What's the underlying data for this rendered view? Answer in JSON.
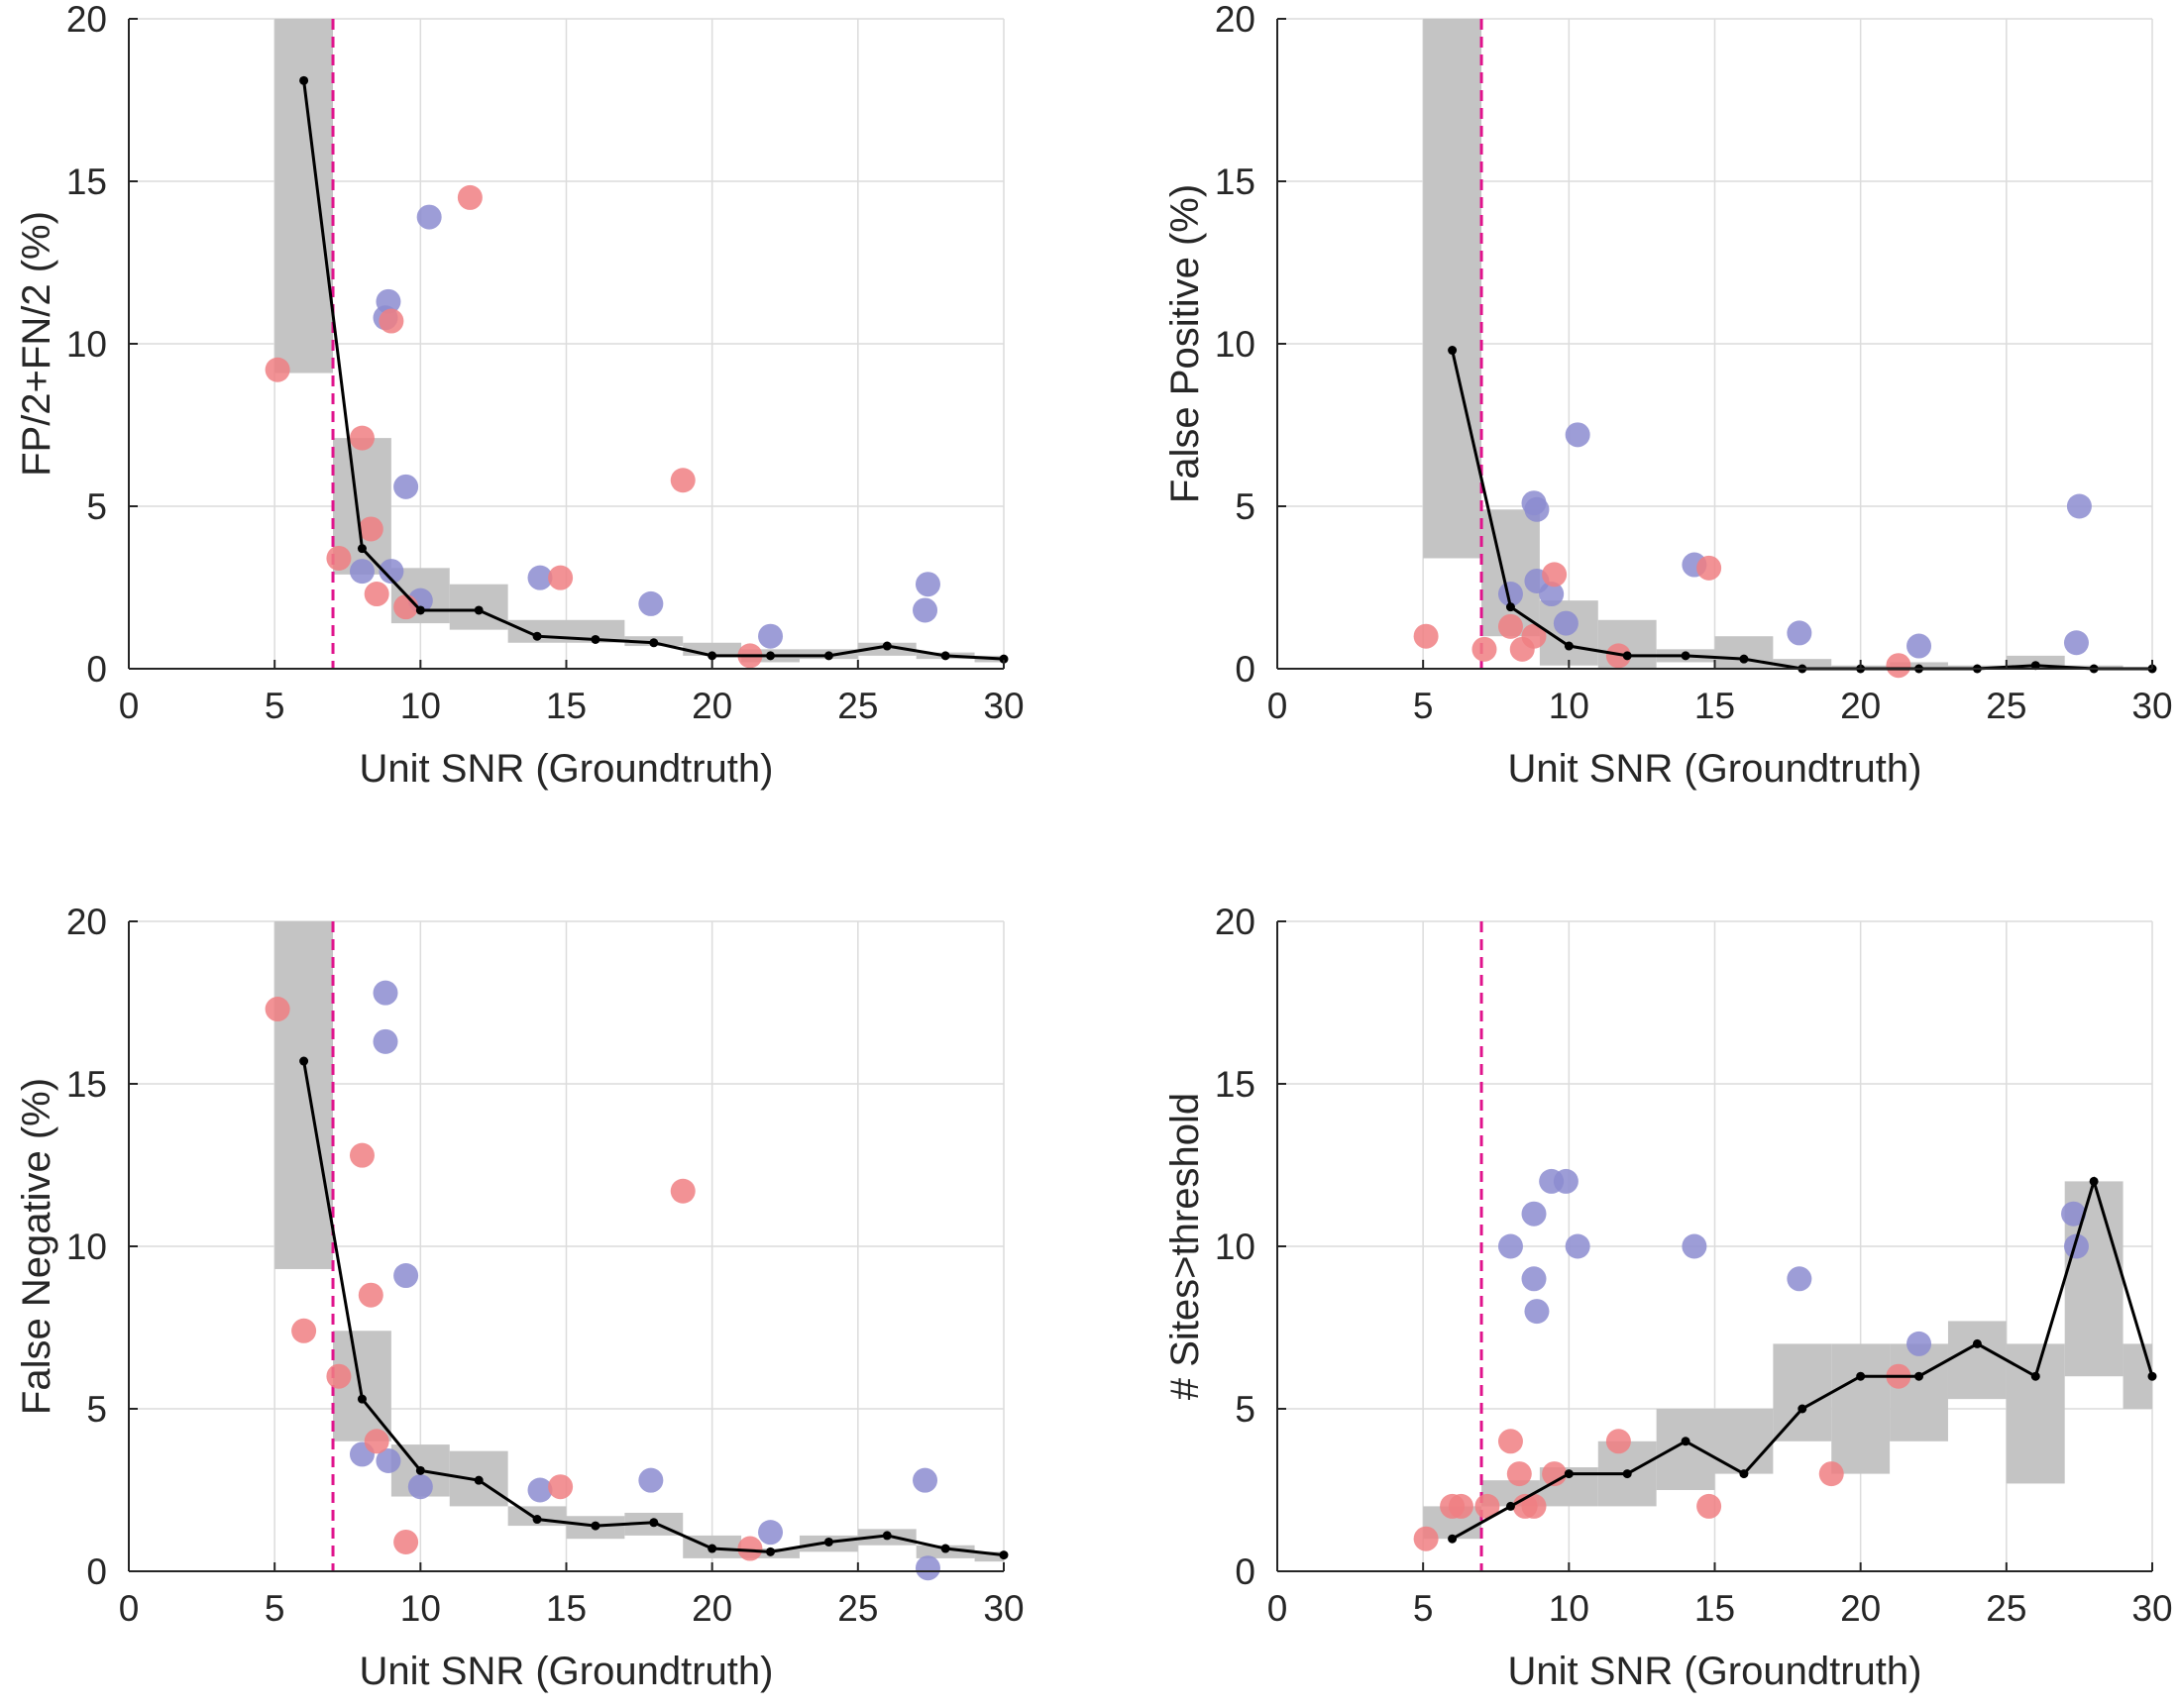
{
  "colors": {
    "band": "#c4c4c4",
    "trend_line": "#000000",
    "vline": "#e0138c",
    "series_a": "#8c8cd0",
    "series_b": "#f07f83",
    "grid": "#dcdcdc",
    "axis": "#262626"
  },
  "chart_data": [
    {
      "type": "scatter",
      "xlabel": "Unit SNR (Groundtruth)",
      "ylabel": "FP/2+FN/2 (%)",
      "xlim": [
        0,
        30
      ],
      "ylim": [
        0,
        20
      ],
      "xticks": [
        "0",
        "5",
        "10",
        "15",
        "20",
        "25",
        "30"
      ],
      "yticks": [
        "0",
        "5",
        "10",
        "15",
        "20"
      ],
      "grid": true,
      "threshold_x": 7,
      "band": [
        {
          "x0": 5,
          "x1": 7,
          "lo": 9.1,
          "hi": 20
        },
        {
          "x0": 7,
          "x1": 9,
          "lo": 2.9,
          "hi": 7.1
        },
        {
          "x0": 9,
          "x1": 11,
          "lo": 1.4,
          "hi": 3.1
        },
        {
          "x0": 11,
          "x1": 13,
          "lo": 1.2,
          "hi": 2.6
        },
        {
          "x0": 13,
          "x1": 15,
          "lo": 0.8,
          "hi": 1.5
        },
        {
          "x0": 15,
          "x1": 17,
          "lo": 0.8,
          "hi": 1.5
        },
        {
          "x0": 17,
          "x1": 19,
          "lo": 0.7,
          "hi": 1.0
        },
        {
          "x0": 19,
          "x1": 21,
          "lo": 0.4,
          "hi": 0.8
        },
        {
          "x0": 21,
          "x1": 23,
          "lo": 0.2,
          "hi": 0.6
        },
        {
          "x0": 23,
          "x1": 25,
          "lo": 0.3,
          "hi": 0.6
        },
        {
          "x0": 25,
          "x1": 27,
          "lo": 0.4,
          "hi": 0.8
        },
        {
          "x0": 27,
          "x1": 29,
          "lo": 0.3,
          "hi": 0.5
        },
        {
          "x0": 29,
          "x1": 30,
          "lo": 0.2,
          "hi": 0.4
        }
      ],
      "trend": {
        "x": [
          6,
          8,
          10,
          12,
          14,
          16,
          18,
          20,
          22,
          24,
          26,
          28,
          30
        ],
        "y": [
          18.1,
          3.7,
          1.8,
          1.8,
          1.0,
          0.9,
          0.8,
          0.4,
          0.4,
          0.4,
          0.7,
          0.4,
          0.3
        ]
      },
      "series": [
        {
          "x": [
            8.0,
            8.9,
            8.8,
            9.0,
            9.5,
            10.0,
            10.3,
            14.1,
            17.9,
            22.0,
            27.3,
            27.4
          ],
          "y": [
            3.0,
            11.3,
            10.8,
            3.0,
            5.6,
            2.1,
            13.9,
            2.8,
            2.0,
            1.0,
            1.8,
            2.6
          ]
        },
        {
          "x": [
            5.1,
            7.2,
            8.0,
            8.3,
            8.5,
            9.0,
            9.5,
            11.7,
            14.8,
            19.0,
            21.3
          ],
          "y": [
            9.2,
            3.4,
            7.1,
            4.3,
            2.3,
            10.7,
            1.9,
            14.5,
            2.8,
            5.8,
            0.4
          ]
        }
      ]
    },
    {
      "type": "scatter",
      "xlabel": "Unit SNR (Groundtruth)",
      "ylabel": "False Positive (%)",
      "xlim": [
        0,
        30
      ],
      "ylim": [
        0,
        20
      ],
      "xticks": [
        "0",
        "5",
        "10",
        "15",
        "20",
        "25",
        "30"
      ],
      "yticks": [
        "0",
        "5",
        "10",
        "15",
        "20"
      ],
      "grid": true,
      "threshold_x": 7,
      "band": [
        {
          "x0": 5,
          "x1": 7,
          "lo": 3.4,
          "hi": 20
        },
        {
          "x0": 7,
          "x1": 9,
          "lo": 1.0,
          "hi": 4.9
        },
        {
          "x0": 9,
          "x1": 11,
          "lo": 0.1,
          "hi": 2.1
        },
        {
          "x0": 11,
          "x1": 13,
          "lo": 0.0,
          "hi": 1.5
        },
        {
          "x0": 13,
          "x1": 15,
          "lo": 0.2,
          "hi": 0.6
        },
        {
          "x0": 15,
          "x1": 17,
          "lo": 0.0,
          "hi": 1.0
        },
        {
          "x0": 17,
          "x1": 19,
          "lo": 0.0,
          "hi": 0.3
        },
        {
          "x0": 19,
          "x1": 21,
          "lo": 0.0,
          "hi": 0.1
        },
        {
          "x0": 21,
          "x1": 23,
          "lo": 0.0,
          "hi": 0.2
        },
        {
          "x0": 23,
          "x1": 25,
          "lo": 0.0,
          "hi": 0.1
        },
        {
          "x0": 25,
          "x1": 27,
          "lo": 0.0,
          "hi": 0.4
        },
        {
          "x0": 27,
          "x1": 29,
          "lo": 0.0,
          "hi": 0.1
        },
        {
          "x0": 29,
          "x1": 30,
          "lo": 0.0,
          "hi": 0.05
        }
      ],
      "trend": {
        "x": [
          6,
          8,
          10,
          12,
          14,
          16,
          18,
          20,
          22,
          24,
          26,
          28,
          30
        ],
        "y": [
          9.8,
          1.9,
          0.7,
          0.4,
          0.4,
          0.3,
          0.0,
          0.0,
          0.0,
          0.0,
          0.1,
          0.0,
          0.0
        ]
      },
      "series": [
        {
          "x": [
            8.0,
            8.8,
            8.9,
            8.9,
            9.4,
            9.9,
            10.3,
            14.3,
            17.9,
            22.0,
            27.4,
            27.5
          ],
          "y": [
            2.3,
            5.1,
            4.9,
            2.7,
            2.3,
            1.4,
            7.2,
            3.2,
            1.1,
            0.7,
            0.8,
            5.0
          ]
        },
        {
          "x": [
            5.1,
            7.1,
            8.0,
            8.4,
            8.8,
            9.5,
            11.7,
            14.8,
            21.3
          ],
          "y": [
            1.0,
            0.6,
            1.3,
            0.6,
            1.0,
            2.9,
            0.4,
            3.1,
            0.1
          ]
        }
      ]
    },
    {
      "type": "scatter",
      "xlabel": "Unit SNR (Groundtruth)",
      "ylabel": "False Negative (%)",
      "xlim": [
        0,
        30
      ],
      "ylim": [
        0,
        20
      ],
      "xticks": [
        "0",
        "5",
        "10",
        "15",
        "20",
        "25",
        "30"
      ],
      "yticks": [
        "0",
        "5",
        "10",
        "15",
        "20"
      ],
      "grid": true,
      "threshold_x": 7,
      "band": [
        {
          "x0": 5,
          "x1": 7,
          "lo": 9.3,
          "hi": 20
        },
        {
          "x0": 7,
          "x1": 9,
          "lo": 4.0,
          "hi": 7.4
        },
        {
          "x0": 9,
          "x1": 11,
          "lo": 2.3,
          "hi": 3.9
        },
        {
          "x0": 11,
          "x1": 13,
          "lo": 2.0,
          "hi": 3.7
        },
        {
          "x0": 13,
          "x1": 15,
          "lo": 1.4,
          "hi": 2.0
        },
        {
          "x0": 15,
          "x1": 17,
          "lo": 1.0,
          "hi": 1.7
        },
        {
          "x0": 17,
          "x1": 19,
          "lo": 1.1,
          "hi": 1.8
        },
        {
          "x0": 19,
          "x1": 21,
          "lo": 0.4,
          "hi": 1.1
        },
        {
          "x0": 21,
          "x1": 23,
          "lo": 0.4,
          "hi": 0.7
        },
        {
          "x0": 23,
          "x1": 25,
          "lo": 0.6,
          "hi": 1.1
        },
        {
          "x0": 25,
          "x1": 27,
          "lo": 0.8,
          "hi": 1.3
        },
        {
          "x0": 27,
          "x1": 29,
          "lo": 0.4,
          "hi": 0.8
        },
        {
          "x0": 29,
          "x1": 30,
          "lo": 0.3,
          "hi": 0.6
        }
      ],
      "trend": {
        "x": [
          6,
          8,
          10,
          12,
          14,
          16,
          18,
          20,
          22,
          24,
          26,
          28,
          30
        ],
        "y": [
          15.7,
          5.3,
          3.1,
          2.8,
          1.6,
          1.4,
          1.5,
          0.7,
          0.6,
          0.9,
          1.1,
          0.7,
          0.5
        ]
      },
      "series": [
        {
          "x": [
            8.0,
            8.8,
            8.8,
            8.9,
            9.5,
            10.0,
            14.1,
            17.9,
            22.0,
            27.3,
            27.4
          ],
          "y": [
            3.6,
            17.8,
            16.3,
            3.4,
            9.1,
            2.6,
            2.5,
            2.8,
            1.2,
            2.8,
            0.1
          ]
        },
        {
          "x": [
            5.1,
            6.0,
            7.2,
            8.0,
            8.3,
            8.5,
            9.5,
            14.8,
            19.0,
            21.3
          ],
          "y": [
            17.3,
            7.4,
            6.0,
            12.8,
            8.5,
            4.0,
            0.9,
            2.6,
            11.7,
            0.7
          ]
        }
      ]
    },
    {
      "type": "scatter",
      "xlabel": "Unit SNR (Groundtruth)",
      "ylabel": "# Sites>threshold",
      "xlim": [
        0,
        30
      ],
      "ylim": [
        0,
        20
      ],
      "xticks": [
        "0",
        "5",
        "10",
        "15",
        "20",
        "25",
        "30"
      ],
      "yticks": [
        "0",
        "5",
        "10",
        "15",
        "20"
      ],
      "grid": true,
      "threshold_x": 7,
      "band": [
        {
          "x0": 5,
          "x1": 7,
          "lo": 1.0,
          "hi": 2.0
        },
        {
          "x0": 7,
          "x1": 9,
          "lo": 2.0,
          "hi": 2.8
        },
        {
          "x0": 9,
          "x1": 11,
          "lo": 2.0,
          "hi": 3.2
        },
        {
          "x0": 11,
          "x1": 13,
          "lo": 2.0,
          "hi": 4.0
        },
        {
          "x0": 13,
          "x1": 15,
          "lo": 2.5,
          "hi": 5.0
        },
        {
          "x0": 15,
          "x1": 17,
          "lo": 3.0,
          "hi": 5.0
        },
        {
          "x0": 17,
          "x1": 19,
          "lo": 4.0,
          "hi": 7.0
        },
        {
          "x0": 19,
          "x1": 21,
          "lo": 3.0,
          "hi": 7.0
        },
        {
          "x0": 21,
          "x1": 23,
          "lo": 4.0,
          "hi": 7.0
        },
        {
          "x0": 23,
          "x1": 25,
          "lo": 5.3,
          "hi": 7.7
        },
        {
          "x0": 25,
          "x1": 27,
          "lo": 2.7,
          "hi": 7.0
        },
        {
          "x0": 27,
          "x1": 29,
          "lo": 6.0,
          "hi": 12.0
        },
        {
          "x0": 29,
          "x1": 30,
          "lo": 5.0,
          "hi": 7.0
        }
      ],
      "trend": {
        "x": [
          6,
          8,
          10,
          12,
          14,
          16,
          18,
          20,
          22,
          24,
          26,
          28,
          30
        ],
        "y": [
          1,
          2,
          3,
          3,
          4,
          3,
          5,
          6,
          6,
          7,
          6,
          12,
          6
        ]
      },
      "series": [
        {
          "x": [
            8.0,
            8.8,
            8.8,
            8.9,
            9.4,
            9.9,
            10.3,
            14.3,
            17.9,
            22.0,
            27.3,
            27.4
          ],
          "y": [
            10,
            9,
            11,
            8,
            12,
            12,
            10,
            10,
            9,
            7,
            11,
            10
          ]
        },
        {
          "x": [
            5.1,
            6.0,
            6.3,
            7.2,
            8.0,
            8.3,
            8.5,
            8.8,
            9.5,
            11.7,
            14.8,
            19.0,
            21.3
          ],
          "y": [
            1,
            2,
            2,
            2,
            4,
            3,
            2,
            2,
            3,
            4,
            2,
            3,
            6
          ]
        }
      ]
    }
  ]
}
